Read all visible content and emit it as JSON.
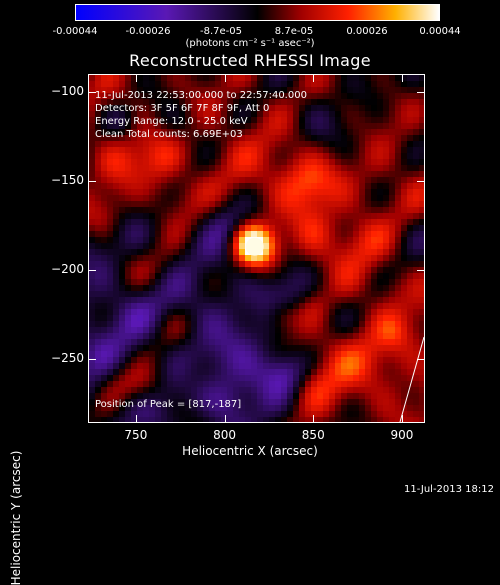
{
  "colorbar": {
    "tick_labels": [
      "-0.00044",
      "-0.00026",
      "-8.7e-05",
      "8.7e-05",
      "0.00026",
      "0.00044"
    ],
    "unit_label": "(photons cm⁻² s⁻¹ asec⁻²)",
    "range": [
      -0.00044,
      0.00044
    ]
  },
  "info": {
    "time_range": "11-Jul-2013 22:53:00.000 to 22:57:40.000",
    "detectors": "Detectors: 3F 5F 6F 7F 8F 9F, Att 0",
    "energy": "Energy Range: 12.0 - 25.0 keV",
    "clean": "Clean     Total counts: 6.69E+03",
    "peak": "Position of Peak = [817,-187]"
  },
  "footer": {
    "timestamp": "11-Jul-2013 18:12"
  },
  "chart_data": {
    "type": "heatmap",
    "title": "Reconstructed RHESSI Image",
    "xlabel": "Heliocentric X (arcsec)",
    "ylabel": "Heliocentric Y (arcsec)",
    "xlim": [
      723,
      913
    ],
    "ylim": [
      -286,
      -90
    ],
    "x_ticks": [
      750,
      800,
      850,
      900
    ],
    "y_ticks": [
      -100,
      -150,
      -200,
      -250
    ],
    "peak": {
      "x": 817,
      "y": -187
    },
    "colormap": "blue-purple-black-red-yellow-white"
  }
}
